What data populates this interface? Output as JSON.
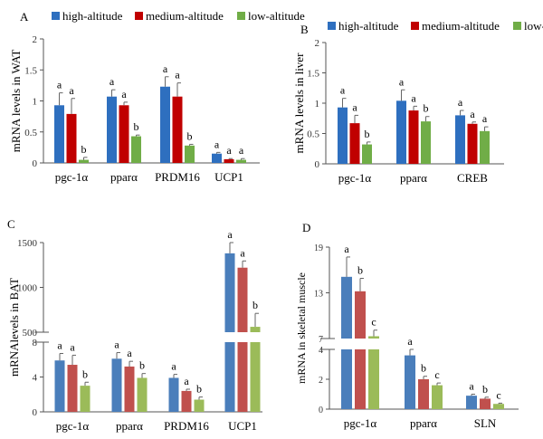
{
  "colors": {
    "A": [
      "#2e6fbf",
      "#c00000",
      "#70ad47"
    ],
    "B": [
      "#2e6fbf",
      "#c00000",
      "#70ad47"
    ],
    "C": [
      "#4a7ebb",
      "#c0504d",
      "#9bbb59"
    ],
    "D": [
      "#4a7ebb",
      "#c0504d",
      "#9bbb59"
    ]
  },
  "chart_data": [
    {
      "type": "bar",
      "panel": "A",
      "ylabel": "mRNA levels in WAT",
      "categories": [
        "pgc-1α",
        "pparα",
        "PRDM16",
        "UCP1"
      ],
      "yticks": [
        0,
        0.5,
        1,
        1.5,
        2
      ],
      "ylim": [
        0,
        2
      ],
      "legend": "top",
      "series": [
        {
          "name": "high-altitude",
          "values": [
            0.93,
            1.07,
            1.23,
            0.15
          ],
          "errors": [
            0.2,
            0.11,
            0.16,
            0.02
          ],
          "letters": [
            "a",
            "a",
            "a",
            "a"
          ]
        },
        {
          "name": "medium-altitude",
          "values": [
            0.79,
            0.93,
            1.07,
            0.06
          ],
          "errors": [
            0.25,
            0.05,
            0.22,
            0.01
          ],
          "letters": [
            "a",
            "a",
            "a",
            "a"
          ]
        },
        {
          "name": "low-altitude",
          "values": [
            0.05,
            0.43,
            0.28,
            0.05
          ],
          "errors": [
            0.04,
            0.02,
            0.02,
            0.02
          ],
          "letters": [
            "b",
            "b",
            "b",
            "a"
          ]
        }
      ]
    },
    {
      "type": "bar",
      "panel": "B",
      "ylabel": "mRNA levels in liver",
      "categories": [
        "pgc-1α",
        "pparα",
        "CREB"
      ],
      "yticks": [
        0,
        0.5,
        1,
        1.5,
        2
      ],
      "ylim": [
        0,
        2
      ],
      "legend": "top",
      "series": [
        {
          "name": "high-altitude",
          "values": [
            0.93,
            1.04,
            0.8
          ],
          "errors": [
            0.15,
            0.18,
            0.08
          ],
          "letters": [
            "a",
            "a",
            "a"
          ]
        },
        {
          "name": "medium-altitude",
          "values": [
            0.67,
            0.88,
            0.66
          ],
          "errors": [
            0.13,
            0.07,
            0.03
          ],
          "letters": [
            "a",
            "a",
            "a"
          ]
        },
        {
          "name": "low-altitude",
          "values": [
            0.32,
            0.7,
            0.54
          ],
          "errors": [
            0.04,
            0.08,
            0.07
          ],
          "letters": [
            "b",
            "b",
            "a"
          ]
        }
      ]
    },
    {
      "type": "bar",
      "panel": "C",
      "ylabel": "mRNAlevels in BAT",
      "categories": [
        "pgc-1α",
        "pparα",
        "PRDM16",
        "UCP1"
      ],
      "yticks_lower": [
        0,
        4,
        8
      ],
      "yticks_upper": [
        500,
        1000,
        1500
      ],
      "ylim_lower": [
        0,
        8
      ],
      "ylim_upper": [
        500,
        1500
      ],
      "axis_break": true,
      "series": [
        {
          "name": "high-altitude",
          "values": [
            5.9,
            6.1,
            3.9,
            1380
          ],
          "errors": [
            0.8,
            0.7,
            0.4,
            120
          ],
          "letters": [
            "a",
            "a",
            "a",
            "a"
          ]
        },
        {
          "name": "medium-altitude",
          "values": [
            5.4,
            5.2,
            2.4,
            1220
          ],
          "errors": [
            1.1,
            0.6,
            0.2,
            75
          ],
          "letters": [
            "a",
            "a",
            "a",
            "a"
          ]
        },
        {
          "name": "low-altitude",
          "values": [
            3.0,
            3.9,
            1.4,
            560
          ],
          "errors": [
            0.4,
            0.5,
            0.3,
            150
          ],
          "letters": [
            "b",
            "b",
            "b",
            "b"
          ]
        }
      ]
    },
    {
      "type": "bar",
      "panel": "D",
      "ylabel": "mRNA in skeletal muscle",
      "categories": [
        "pgc-1α",
        "pparα",
        "SLN"
      ],
      "yticks_lower": [
        0,
        2,
        4
      ],
      "yticks_upper": [
        7,
        13,
        19
      ],
      "ylim_lower": [
        0,
        4
      ],
      "ylim_upper": [
        7,
        19
      ],
      "axis_break": true,
      "series": [
        {
          "name": "high-altitude",
          "values": [
            15.1,
            3.6,
            0.9
          ],
          "errors": [
            2.6,
            0.4,
            0.1
          ],
          "letters": [
            "a",
            "a",
            "a"
          ]
        },
        {
          "name": "medium-altitude",
          "values": [
            13.2,
            2.0,
            0.7
          ],
          "errors": [
            1.7,
            0.2,
            0.1
          ],
          "letters": [
            "b",
            "b",
            "b"
          ]
        },
        {
          "name": "low-altitude",
          "values": [
            7.3,
            1.6,
            0.35
          ],
          "errors": [
            0.8,
            0.15,
            0.05
          ],
          "letters": [
            "c",
            "c",
            "c"
          ]
        }
      ]
    }
  ]
}
